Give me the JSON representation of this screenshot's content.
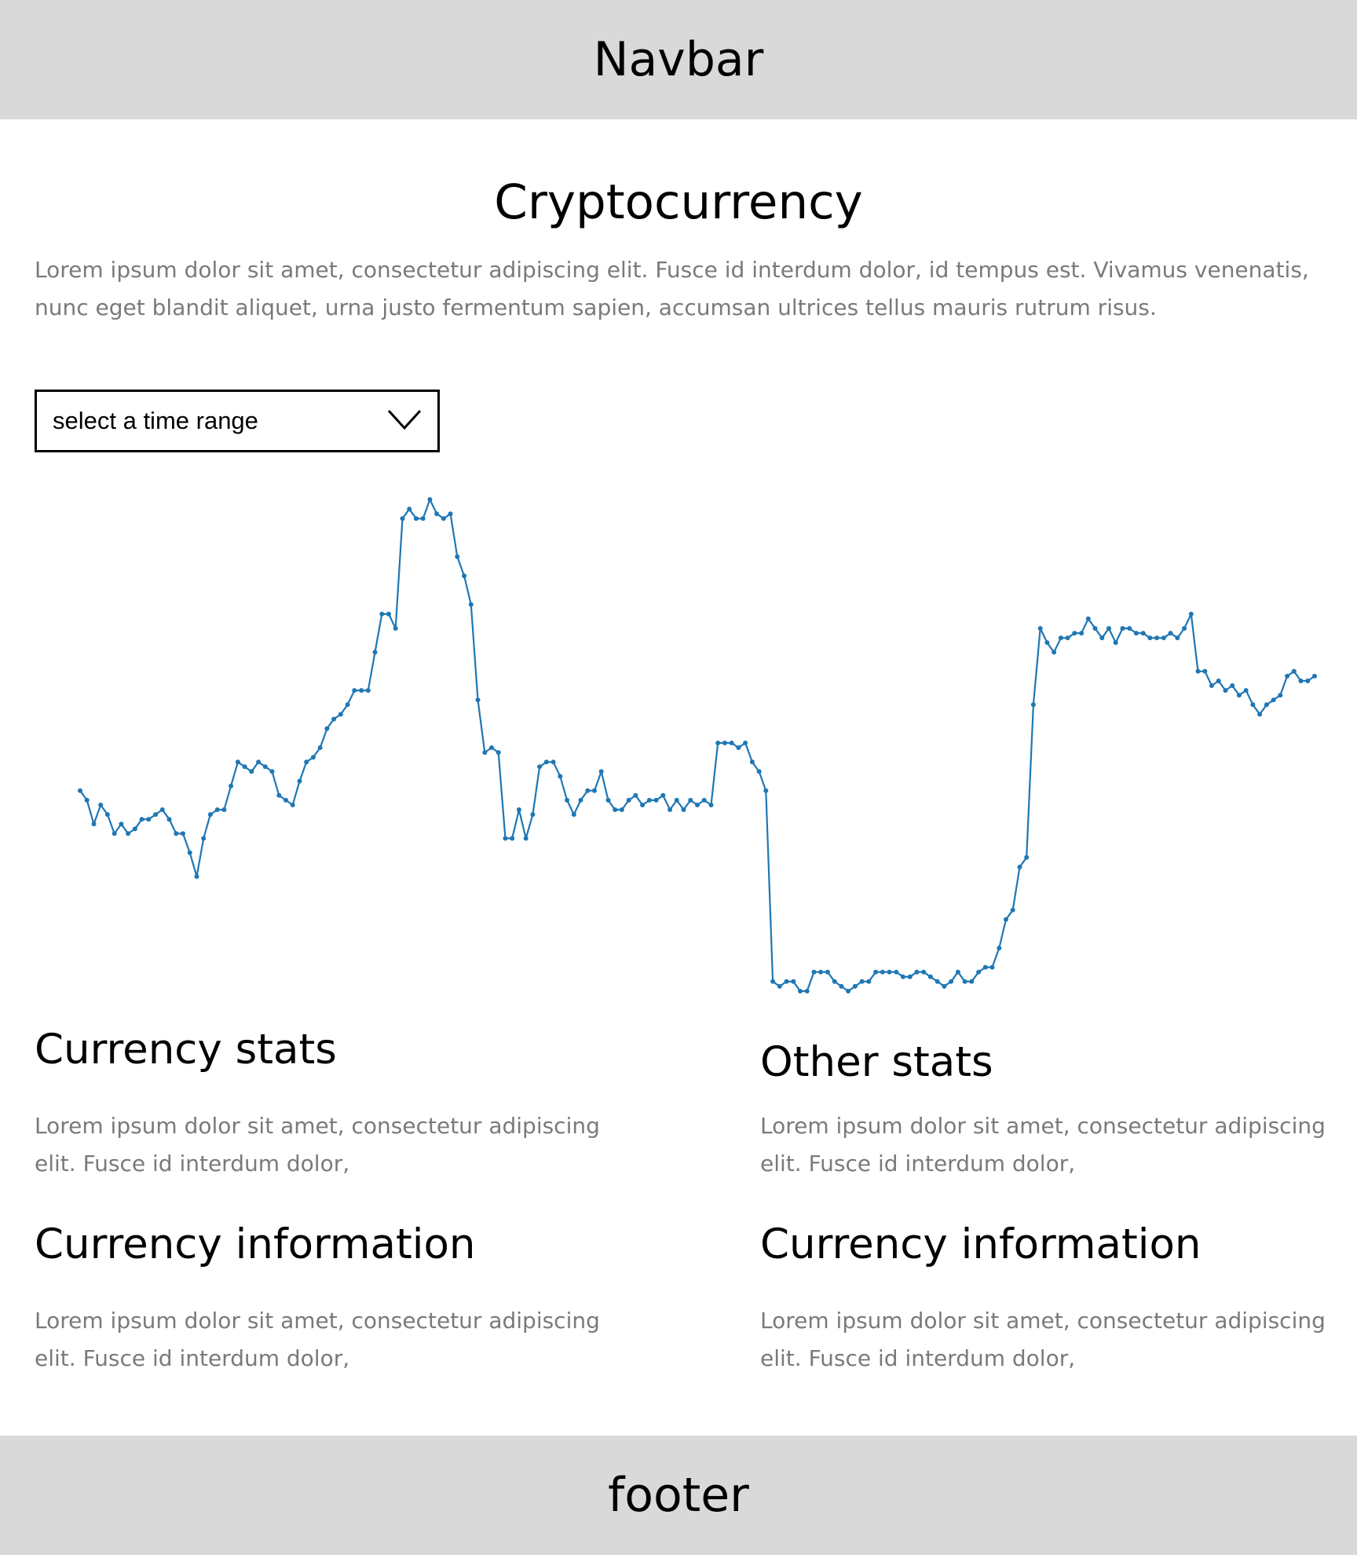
{
  "navbar": {
    "label": "Navbar"
  },
  "page": {
    "title": "Cryptocurrency",
    "intro": "Lorem ipsum dolor sit amet, consectetur adipiscing elit. Fusce id interdum dolor, id tempus est. Vivamus venenatis, nunc eget blandit aliquet, urna justo fermentum sapien, accumsan ultrices tellus mauris rutrum risus."
  },
  "time_range_select": {
    "selected": "select a time range",
    "icon": "chevron-down-icon"
  },
  "chart_data": {
    "type": "line",
    "color": "#1f77b4",
    "grid": false,
    "values": [
      42,
      40,
      35,
      39,
      37,
      33,
      35,
      33,
      34,
      36,
      36,
      37,
      38,
      36,
      33,
      33,
      29,
      24,
      32,
      37,
      38,
      38,
      43,
      48,
      47,
      46,
      48,
      47,
      46,
      41,
      40,
      39,
      44,
      48,
      49,
      51,
      55,
      57,
      58,
      60,
      63,
      63,
      63,
      71,
      79,
      79,
      76,
      99,
      101,
      99,
      99,
      103,
      100,
      99,
      100,
      91,
      87,
      81,
      61,
      50,
      51,
      50,
      32,
      32,
      38,
      32,
      37,
      47,
      48,
      48,
      45,
      40,
      37,
      40,
      42,
      42,
      46,
      40,
      38,
      38,
      40,
      41,
      39,
      40,
      40,
      41,
      38,
      40,
      38,
      40,
      39,
      40,
      39,
      52,
      52,
      52,
      51,
      52,
      48,
      46,
      42,
      2,
      1,
      2,
      2,
      0,
      0,
      4,
      4,
      4,
      2,
      1,
      0,
      1,
      2,
      2,
      4,
      4,
      4,
      4,
      3,
      3,
      4,
      4,
      3,
      2,
      1,
      2,
      4,
      2,
      2,
      4,
      5,
      5,
      9,
      15,
      17,
      26,
      28,
      60,
      76,
      73,
      71,
      74,
      74,
      75,
      75,
      78,
      76,
      74,
      76,
      73,
      76,
      76,
      75,
      75,
      74,
      74,
      74,
      75,
      74,
      76,
      79,
      67,
      67,
      64,
      65,
      63,
      64,
      62,
      63,
      60,
      58,
      60,
      61,
      62,
      66,
      67,
      65,
      65,
      66
    ]
  },
  "sections": [
    {
      "heading": "Currency stats",
      "text": "Lorem ipsum dolor sit amet, consectetur adipiscing elit. Fusce id interdum dolor,"
    },
    {
      "heading": "Other stats",
      "text": "Lorem ipsum dolor sit amet, consectetur adipiscing elit. Fusce id interdum dolor,"
    },
    {
      "heading": "Currency information",
      "text": "Lorem ipsum dolor sit amet, consectetur adipiscing elit. Fusce id interdum dolor,"
    },
    {
      "heading": "Currency information",
      "text": "Lorem ipsum dolor sit amet, consectetur adipiscing elit. Fusce id interdum dolor,"
    }
  ],
  "footer": {
    "label": "footer"
  }
}
